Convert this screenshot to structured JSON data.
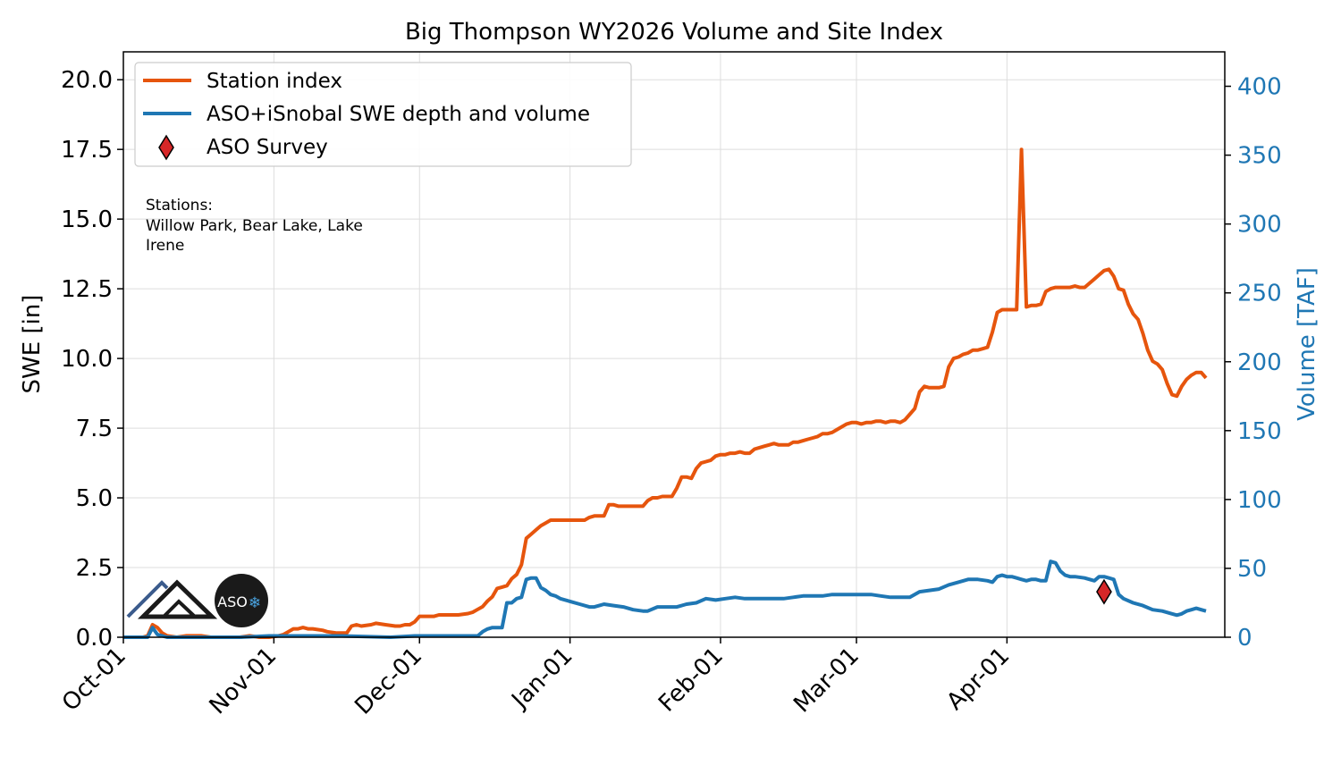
{
  "chart_data": {
    "type": "line",
    "title": "Big Thompson WY2026 Volume and Site Index",
    "ylabel": "SWE [in]",
    "y2label": "Volume [TAF]",
    "ylim": [
      0,
      21
    ],
    "y2lim": [
      0,
      425
    ],
    "yticks": [
      "0.0",
      "2.5",
      "5.0",
      "7.5",
      "10.0",
      "12.5",
      "15.0",
      "17.5",
      "20.0"
    ],
    "y2ticks": [
      "0",
      "50",
      "100",
      "150",
      "200",
      "250",
      "300",
      "350",
      "400"
    ],
    "xticks": [
      "Oct-01",
      "Nov-01",
      "Dec-01",
      "Jan-01",
      "Feb-01",
      "Mar-01",
      "Apr-01"
    ],
    "grid": true,
    "legend_position": "top-left",
    "legend": [
      {
        "label": "Station index",
        "color": "#e6550d",
        "kind": "line"
      },
      {
        "label": "ASO+iSnobal SWE depth and volume",
        "color": "#1f77b4",
        "kind": "line"
      },
      {
        "label": "ASO Survey",
        "color": "#d62728",
        "kind": "diamond"
      }
    ],
    "annotation": {
      "heading": "Stations:",
      "line1": "Willow Park, Bear Lake, Lake",
      "line2": "Irene"
    },
    "logo_text": "ASO",
    "series": [
      {
        "name": "Station index",
        "axis": "left",
        "color": "#e6550d",
        "points": [
          [
            0,
            0.0
          ],
          [
            4,
            0.0
          ],
          [
            5,
            0.05
          ],
          [
            6,
            0.45
          ],
          [
            7,
            0.35
          ],
          [
            8,
            0.15
          ],
          [
            9,
            0.05
          ],
          [
            11,
            0.0
          ],
          [
            13,
            0.05
          ],
          [
            16,
            0.05
          ],
          [
            18,
            0.0
          ],
          [
            20,
            0.0
          ],
          [
            24,
            0.0
          ],
          [
            26,
            0.05
          ],
          [
            28,
            0.0
          ],
          [
            30,
            0.0
          ],
          [
            32,
            0.05
          ],
          [
            33,
            0.1
          ],
          [
            34,
            0.2
          ],
          [
            35,
            0.3
          ],
          [
            36,
            0.3
          ],
          [
            37,
            0.35
          ],
          [
            38,
            0.3
          ],
          [
            39,
            0.3
          ],
          [
            41,
            0.25
          ],
          [
            42,
            0.2
          ],
          [
            44,
            0.15
          ],
          [
            46,
            0.15
          ],
          [
            47,
            0.4
          ],
          [
            48,
            0.45
          ],
          [
            49,
            0.4
          ],
          [
            51,
            0.45
          ],
          [
            52,
            0.5
          ],
          [
            54,
            0.45
          ],
          [
            56,
            0.4
          ],
          [
            57,
            0.4
          ],
          [
            58,
            0.45
          ],
          [
            59,
            0.45
          ],
          [
            60,
            0.55
          ],
          [
            61,
            0.75
          ],
          [
            63,
            0.75
          ],
          [
            64,
            0.75
          ],
          [
            65,
            0.8
          ],
          [
            67,
            0.8
          ],
          [
            69,
            0.8
          ],
          [
            71,
            0.85
          ],
          [
            72,
            0.9
          ],
          [
            73,
            1.0
          ],
          [
            74,
            1.1
          ],
          [
            75,
            1.3
          ],
          [
            76,
            1.45
          ],
          [
            77,
            1.75
          ],
          [
            78,
            1.8
          ],
          [
            79,
            1.85
          ],
          [
            80,
            2.1
          ],
          [
            81,
            2.25
          ],
          [
            82,
            2.6
          ],
          [
            83,
            3.55
          ],
          [
            84,
            3.7
          ],
          [
            85,
            3.85
          ],
          [
            86,
            4.0
          ],
          [
            87,
            4.1
          ],
          [
            88,
            4.2
          ],
          [
            90,
            4.2
          ],
          [
            91,
            4.2
          ],
          [
            92,
            4.2
          ],
          [
            94,
            4.2
          ],
          [
            95,
            4.2
          ],
          [
            96,
            4.3
          ],
          [
            97,
            4.35
          ],
          [
            99,
            4.35
          ],
          [
            100,
            4.75
          ],
          [
            101,
            4.75
          ],
          [
            102,
            4.7
          ],
          [
            104,
            4.7
          ],
          [
            105,
            4.7
          ],
          [
            107,
            4.7
          ],
          [
            108,
            4.9
          ],
          [
            109,
            5.0
          ],
          [
            110,
            5.0
          ],
          [
            111,
            5.05
          ],
          [
            113,
            5.05
          ],
          [
            114,
            5.35
          ],
          [
            115,
            5.75
          ],
          [
            116,
            5.75
          ],
          [
            117,
            5.7
          ],
          [
            118,
            6.05
          ],
          [
            119,
            6.25
          ],
          [
            120,
            6.3
          ],
          [
            121,
            6.35
          ],
          [
            122,
            6.5
          ],
          [
            123,
            6.55
          ],
          [
            124,
            6.55
          ],
          [
            125,
            6.6
          ],
          [
            126,
            6.6
          ],
          [
            127,
            6.65
          ],
          [
            128,
            6.6
          ],
          [
            129,
            6.6
          ],
          [
            130,
            6.75
          ],
          [
            131,
            6.8
          ],
          [
            132,
            6.85
          ],
          [
            133,
            6.9
          ],
          [
            134,
            6.95
          ],
          [
            135,
            6.9
          ],
          [
            136,
            6.9
          ],
          [
            137,
            6.9
          ],
          [
            138,
            7.0
          ],
          [
            139,
            7.0
          ],
          [
            140,
            7.05
          ],
          [
            141,
            7.1
          ],
          [
            142,
            7.15
          ],
          [
            143,
            7.2
          ],
          [
            144,
            7.3
          ],
          [
            145,
            7.3
          ],
          [
            146,
            7.35
          ],
          [
            147,
            7.45
          ],
          [
            148,
            7.55
          ],
          [
            149,
            7.65
          ],
          [
            150,
            7.7
          ],
          [
            151,
            7.7
          ],
          [
            152,
            7.65
          ],
          [
            153,
            7.7
          ],
          [
            154,
            7.7
          ],
          [
            155,
            7.75
          ],
          [
            156,
            7.75
          ],
          [
            157,
            7.7
          ],
          [
            158,
            7.75
          ],
          [
            159,
            7.75
          ],
          [
            160,
            7.7
          ],
          [
            161,
            7.8
          ],
          [
            162,
            8.0
          ],
          [
            163,
            8.2
          ],
          [
            164,
            8.8
          ],
          [
            165,
            9.0
          ],
          [
            166,
            8.95
          ],
          [
            168,
            8.95
          ],
          [
            169,
            9.0
          ],
          [
            170,
            9.7
          ],
          [
            171,
            10.0
          ],
          [
            172,
            10.05
          ],
          [
            173,
            10.15
          ],
          [
            174,
            10.2
          ],
          [
            175,
            10.3
          ],
          [
            176,
            10.3
          ],
          [
            177,
            10.35
          ],
          [
            178,
            10.4
          ],
          [
            179,
            10.95
          ],
          [
            180,
            11.65
          ],
          [
            181,
            11.75
          ],
          [
            182,
            11.75
          ],
          [
            183,
            11.75
          ],
          [
            184,
            11.75
          ],
          [
            185,
            17.5
          ],
          [
            186,
            11.85
          ],
          [
            187,
            11.9
          ],
          [
            188,
            11.9
          ],
          [
            189,
            11.95
          ],
          [
            190,
            12.4
          ],
          [
            191,
            12.5
          ],
          [
            192,
            12.55
          ],
          [
            193,
            12.55
          ],
          [
            194,
            12.55
          ],
          [
            195,
            12.55
          ],
          [
            196,
            12.6
          ],
          [
            197,
            12.55
          ],
          [
            198,
            12.55
          ],
          [
            199,
            12.7
          ],
          [
            200,
            12.85
          ],
          [
            201,
            13.0
          ],
          [
            202,
            13.15
          ],
          [
            203,
            13.2
          ],
          [
            204,
            12.95
          ],
          [
            205,
            12.5
          ],
          [
            206,
            12.45
          ],
          [
            207,
            11.95
          ],
          [
            208,
            11.6
          ],
          [
            209,
            11.4
          ],
          [
            210,
            10.9
          ],
          [
            211,
            10.3
          ],
          [
            212,
            9.9
          ],
          [
            213,
            9.8
          ],
          [
            214,
            9.6
          ],
          [
            215,
            9.1
          ],
          [
            216,
            8.7
          ],
          [
            217,
            8.65
          ],
          [
            218,
            9.0
          ],
          [
            219,
            9.25
          ],
          [
            220,
            9.4
          ],
          [
            221,
            9.5
          ],
          [
            222,
            9.5
          ],
          [
            223,
            9.3
          ]
        ]
      },
      {
        "name": "ASO+iSnobal SWE depth and volume",
        "axis": "right",
        "color": "#1f77b4",
        "points": [
          [
            0,
            0
          ],
          [
            5,
            0
          ],
          [
            6,
            7
          ],
          [
            7,
            2
          ],
          [
            9,
            0
          ],
          [
            24,
            0
          ],
          [
            30,
            1
          ],
          [
            45,
            1
          ],
          [
            55,
            0
          ],
          [
            60,
            1
          ],
          [
            73,
            1
          ],
          [
            74,
            4
          ],
          [
            75,
            6
          ],
          [
            76,
            7
          ],
          [
            77,
            7
          ],
          [
            78,
            7
          ],
          [
            79,
            25
          ],
          [
            80,
            25
          ],
          [
            81,
            28
          ],
          [
            82,
            29
          ],
          [
            83,
            42
          ],
          [
            84,
            43
          ],
          [
            85,
            43
          ],
          [
            86,
            36
          ],
          [
            87,
            34
          ],
          [
            88,
            31
          ],
          [
            89,
            30
          ],
          [
            90,
            28
          ],
          [
            92,
            26
          ],
          [
            94,
            24
          ],
          [
            96,
            22
          ],
          [
            97,
            22
          ],
          [
            98,
            23
          ],
          [
            99,
            24
          ],
          [
            101,
            23
          ],
          [
            103,
            22
          ],
          [
            105,
            20
          ],
          [
            107,
            19
          ],
          [
            108,
            19
          ],
          [
            110,
            22
          ],
          [
            114,
            22
          ],
          [
            116,
            24
          ],
          [
            118,
            25
          ],
          [
            120,
            28
          ],
          [
            122,
            27
          ],
          [
            124,
            28
          ],
          [
            126,
            29
          ],
          [
            128,
            28
          ],
          [
            130,
            28
          ],
          [
            132,
            28
          ],
          [
            134,
            28
          ],
          [
            136,
            28
          ],
          [
            138,
            29
          ],
          [
            140,
            30
          ],
          [
            142,
            30
          ],
          [
            144,
            30
          ],
          [
            146,
            31
          ],
          [
            148,
            31
          ],
          [
            150,
            31
          ],
          [
            152,
            31
          ],
          [
            154,
            31
          ],
          [
            156,
            30
          ],
          [
            158,
            29
          ],
          [
            160,
            29
          ],
          [
            162,
            29
          ],
          [
            164,
            33
          ],
          [
            166,
            34
          ],
          [
            168,
            35
          ],
          [
            170,
            38
          ],
          [
            172,
            40
          ],
          [
            174,
            42
          ],
          [
            176,
            42
          ],
          [
            178,
            41
          ],
          [
            179,
            40
          ],
          [
            180,
            44
          ],
          [
            181,
            45
          ],
          [
            182,
            44
          ],
          [
            183,
            44
          ],
          [
            184,
            43
          ],
          [
            185,
            42
          ],
          [
            186,
            41
          ],
          [
            187,
            42
          ],
          [
            188,
            42
          ],
          [
            189,
            41
          ],
          [
            190,
            41
          ],
          [
            191,
            55
          ],
          [
            192,
            54
          ],
          [
            193,
            48
          ],
          [
            194,
            45
          ],
          [
            195,
            44
          ],
          [
            196,
            44
          ],
          [
            198,
            43
          ],
          [
            200,
            41
          ],
          [
            201,
            44
          ],
          [
            202,
            44
          ],
          [
            203,
            43
          ],
          [
            204,
            42
          ],
          [
            205,
            31
          ],
          [
            206,
            28
          ],
          [
            208,
            25
          ],
          [
            210,
            23
          ],
          [
            212,
            20
          ],
          [
            214,
            19
          ],
          [
            216,
            17
          ],
          [
            217,
            16
          ],
          [
            218,
            17
          ],
          [
            219,
            19
          ],
          [
            220,
            20
          ],
          [
            221,
            21
          ],
          [
            222,
            20
          ],
          [
            223,
            19
          ]
        ]
      }
    ],
    "aso_survey": {
      "day": 202,
      "volume": 33
    }
  }
}
